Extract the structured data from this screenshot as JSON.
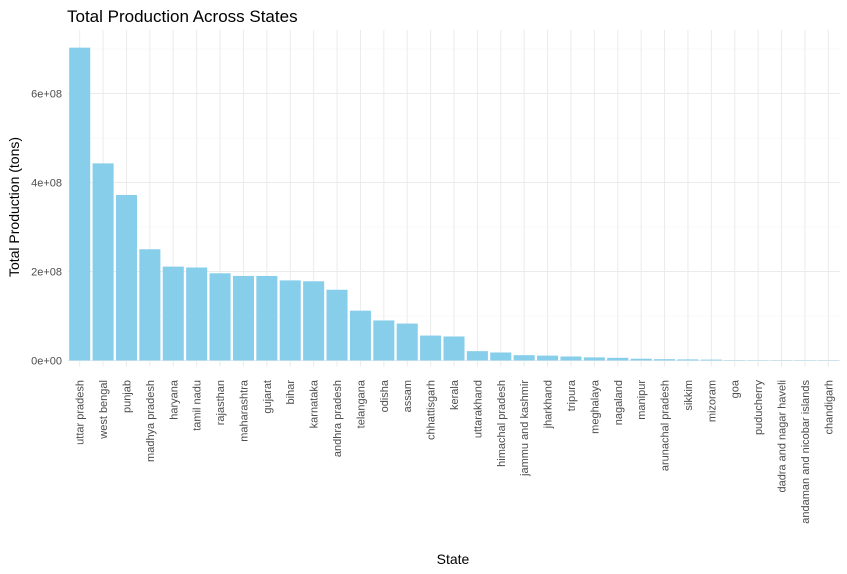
{
  "chart_data": {
    "type": "bar",
    "title": "Total Production Across States",
    "xlabel": "State",
    "ylabel": "Total Production (tons)",
    "ylim": [
      0,
      700000000
    ],
    "yticks": [
      0,
      200000000,
      400000000,
      600000000
    ],
    "ytick_labels": [
      "0e+00",
      "2e+08",
      "4e+08",
      "6e+08"
    ],
    "grid": true,
    "bar_color": "#87CEEB",
    "categories": [
      "uttar pradesh",
      "west bengal",
      "punjab",
      "madhya pradesh",
      "haryana",
      "tamil nadu",
      "rajasthan",
      "maharashtra",
      "gujarat",
      "bihar",
      "karnataka",
      "andhra pradesh",
      "telangana",
      "odisha",
      "assam",
      "chhattisgarh",
      "kerala",
      "uttarakhand",
      "himachal pradesh",
      "jammu and kashmir",
      "jharkhand",
      "tripura",
      "meghalaya",
      "nagaland",
      "manipur",
      "arunachal pradesh",
      "sikkim",
      "mizoram",
      "goa",
      "puducherry",
      "dadra and nagar haveli",
      "andaman and nicobar islands",
      "chandigarh"
    ],
    "values": [
      703000000,
      443000000,
      372000000,
      250000000,
      211000000,
      209000000,
      196000000,
      190000000,
      190000000,
      180000000,
      178000000,
      159000000,
      112000000,
      90000000,
      83000000,
      56000000,
      54000000,
      21000000,
      18000000,
      12000000,
      11000000,
      9000000,
      7000000,
      6000000,
      4000000,
      3000000,
      2500000,
      2000000,
      800000,
      600000,
      300000,
      200000,
      100000
    ]
  }
}
